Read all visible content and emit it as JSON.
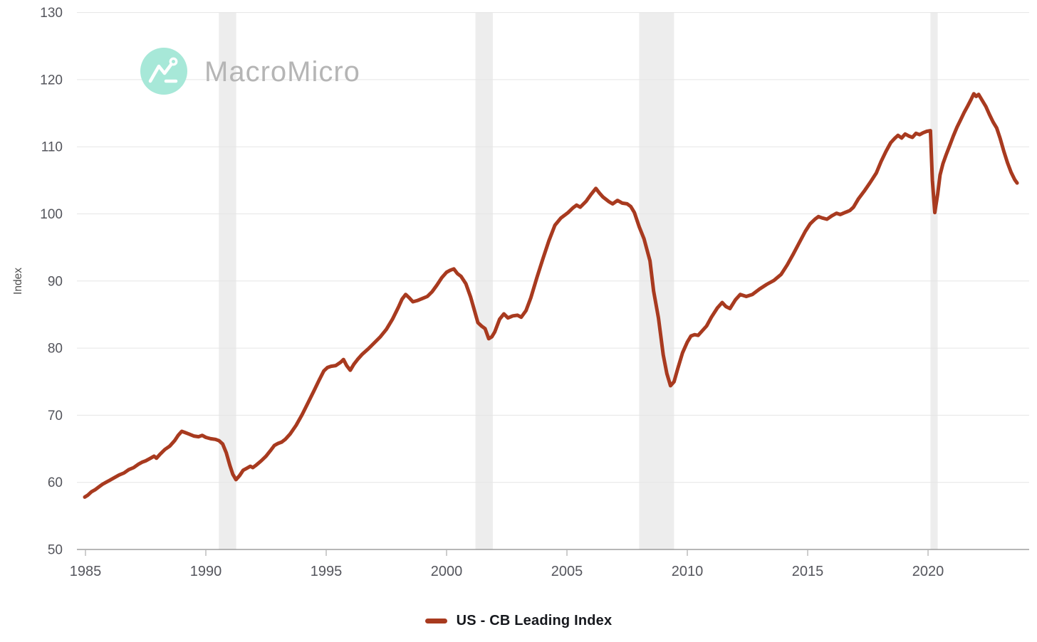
{
  "watermark": {
    "brand": "MacroMicro",
    "logo_icon": "macromicro-zigzag-logo"
  },
  "legend": {
    "label": "US - CB Leading Index",
    "marker_color": "#a83a1f"
  },
  "colors": {
    "line": "#a83a1f",
    "grid": "#e5e5e5",
    "recession_band": "#ededed",
    "axis_line": "#8c8c8c",
    "tick_mark": "#b3b3b3",
    "tick_label": "#54555c",
    "axis_title": "#4f4f4f",
    "watermark_text": "#b5b5b5",
    "logo_circle": "#a7e8d8",
    "logo_glyph": "#ffffff"
  },
  "chart_data": {
    "type": "line",
    "title": "",
    "xlabel": "",
    "ylabel": "Index",
    "x_ticks": [
      1985,
      1990,
      1995,
      2000,
      2005,
      2010,
      2015,
      2020
    ],
    "y_ticks": [
      50,
      60,
      70,
      80,
      90,
      100,
      110,
      120,
      130
    ],
    "xlim": [
      1984.645,
      2024.2
    ],
    "ylim": [
      50,
      130
    ],
    "grid": true,
    "legend_position": "bottom",
    "recession_bands": [
      [
        1990.54,
        1991.26
      ],
      [
        2001.2,
        2001.92
      ],
      [
        2008.0,
        2009.45
      ],
      [
        2020.1,
        2020.4
      ]
    ],
    "series": [
      {
        "name": "US - CB Leading Index",
        "color": "#a83a1f",
        "points": [
          [
            1984.97,
            57.8
          ],
          [
            1985.1,
            58.1
          ],
          [
            1985.25,
            58.6
          ],
          [
            1985.4,
            58.9
          ],
          [
            1985.55,
            59.3
          ],
          [
            1985.7,
            59.7
          ],
          [
            1985.85,
            60.0
          ],
          [
            1986.0,
            60.3
          ],
          [
            1986.2,
            60.7
          ],
          [
            1986.4,
            61.1
          ],
          [
            1986.6,
            61.4
          ],
          [
            1986.8,
            61.9
          ],
          [
            1987.0,
            62.2
          ],
          [
            1987.2,
            62.7
          ],
          [
            1987.35,
            63.0
          ],
          [
            1987.5,
            63.2
          ],
          [
            1987.7,
            63.6
          ],
          [
            1987.85,
            63.9
          ],
          [
            1987.95,
            63.6
          ],
          [
            1988.1,
            64.2
          ],
          [
            1988.3,
            64.9
          ],
          [
            1988.5,
            65.4
          ],
          [
            1988.7,
            66.2
          ],
          [
            1988.85,
            67.0
          ],
          [
            1989.0,
            67.6
          ],
          [
            1989.15,
            67.4
          ],
          [
            1989.3,
            67.2
          ],
          [
            1989.5,
            66.9
          ],
          [
            1989.7,
            66.8
          ],
          [
            1989.85,
            67.0
          ],
          [
            1990.0,
            66.7
          ],
          [
            1990.2,
            66.5
          ],
          [
            1990.4,
            66.4
          ],
          [
            1990.55,
            66.2
          ],
          [
            1990.7,
            65.7
          ],
          [
            1990.85,
            64.4
          ],
          [
            1991.0,
            62.5
          ],
          [
            1991.12,
            61.2
          ],
          [
            1991.25,
            60.4
          ],
          [
            1991.4,
            61.0
          ],
          [
            1991.55,
            61.8
          ],
          [
            1991.7,
            62.1
          ],
          [
            1991.85,
            62.4
          ],
          [
            1991.95,
            62.2
          ],
          [
            1992.1,
            62.6
          ],
          [
            1992.3,
            63.2
          ],
          [
            1992.5,
            63.9
          ],
          [
            1992.7,
            64.8
          ],
          [
            1992.85,
            65.5
          ],
          [
            1993.0,
            65.8
          ],
          [
            1993.15,
            66.0
          ],
          [
            1993.3,
            66.4
          ],
          [
            1993.5,
            67.2
          ],
          [
            1993.75,
            68.5
          ],
          [
            1994.0,
            70.1
          ],
          [
            1994.25,
            71.9
          ],
          [
            1994.5,
            73.7
          ],
          [
            1994.7,
            75.2
          ],
          [
            1994.9,
            76.6
          ],
          [
            1995.05,
            77.1
          ],
          [
            1995.2,
            77.3
          ],
          [
            1995.4,
            77.4
          ],
          [
            1995.6,
            77.9
          ],
          [
            1995.72,
            78.3
          ],
          [
            1995.85,
            77.4
          ],
          [
            1996.0,
            76.7
          ],
          [
            1996.15,
            77.6
          ],
          [
            1996.3,
            78.3
          ],
          [
            1996.5,
            79.1
          ],
          [
            1996.75,
            79.9
          ],
          [
            1997.0,
            80.8
          ],
          [
            1997.25,
            81.7
          ],
          [
            1997.5,
            82.8
          ],
          [
            1997.75,
            84.3
          ],
          [
            1998.0,
            86.1
          ],
          [
            1998.15,
            87.3
          ],
          [
            1998.3,
            88.0
          ],
          [
            1998.45,
            87.5
          ],
          [
            1998.6,
            86.9
          ],
          [
            1998.8,
            87.1
          ],
          [
            1999.0,
            87.4
          ],
          [
            1999.2,
            87.7
          ],
          [
            1999.4,
            88.4
          ],
          [
            1999.6,
            89.4
          ],
          [
            1999.8,
            90.5
          ],
          [
            2000.0,
            91.3
          ],
          [
            2000.15,
            91.6
          ],
          [
            2000.3,
            91.8
          ],
          [
            2000.45,
            91.1
          ],
          [
            2000.6,
            90.7
          ],
          [
            2000.8,
            89.6
          ],
          [
            2001.0,
            87.6
          ],
          [
            2001.15,
            85.7
          ],
          [
            2001.3,
            83.8
          ],
          [
            2001.45,
            83.3
          ],
          [
            2001.6,
            82.9
          ],
          [
            2001.75,
            81.4
          ],
          [
            2001.88,
            81.7
          ],
          [
            2002.0,
            82.4
          ],
          [
            2002.2,
            84.3
          ],
          [
            2002.38,
            85.1
          ],
          [
            2002.55,
            84.5
          ],
          [
            2002.75,
            84.8
          ],
          [
            2002.95,
            84.9
          ],
          [
            2003.1,
            84.6
          ],
          [
            2003.3,
            85.6
          ],
          [
            2003.5,
            87.5
          ],
          [
            2003.75,
            90.5
          ],
          [
            2004.0,
            93.3
          ],
          [
            2004.25,
            96.0
          ],
          [
            2004.5,
            98.3
          ],
          [
            2004.75,
            99.4
          ],
          [
            2005.05,
            100.2
          ],
          [
            2005.25,
            100.9
          ],
          [
            2005.4,
            101.3
          ],
          [
            2005.55,
            101.0
          ],
          [
            2005.8,
            101.9
          ],
          [
            2006.0,
            102.9
          ],
          [
            2006.2,
            103.8
          ],
          [
            2006.35,
            103.1
          ],
          [
            2006.5,
            102.5
          ],
          [
            2006.75,
            101.8
          ],
          [
            2006.9,
            101.5
          ],
          [
            2007.1,
            102.0
          ],
          [
            2007.3,
            101.6
          ],
          [
            2007.5,
            101.5
          ],
          [
            2007.65,
            101.1
          ],
          [
            2007.8,
            100.2
          ],
          [
            2008.0,
            98.1
          ],
          [
            2008.2,
            96.3
          ],
          [
            2008.45,
            93.0
          ],
          [
            2008.6,
            88.5
          ],
          [
            2008.8,
            84.5
          ],
          [
            2009.0,
            79.0
          ],
          [
            2009.15,
            76.2
          ],
          [
            2009.3,
            74.4
          ],
          [
            2009.45,
            75.0
          ],
          [
            2009.6,
            76.9
          ],
          [
            2009.8,
            79.3
          ],
          [
            2010.0,
            80.9
          ],
          [
            2010.15,
            81.8
          ],
          [
            2010.3,
            82.0
          ],
          [
            2010.45,
            81.9
          ],
          [
            2010.6,
            82.5
          ],
          [
            2010.8,
            83.3
          ],
          [
            2011.0,
            84.6
          ],
          [
            2011.25,
            86.0
          ],
          [
            2011.45,
            86.8
          ],
          [
            2011.6,
            86.2
          ],
          [
            2011.77,
            85.9
          ],
          [
            2012.0,
            87.2
          ],
          [
            2012.2,
            88.0
          ],
          [
            2012.45,
            87.7
          ],
          [
            2012.7,
            88.0
          ],
          [
            2013.0,
            88.8
          ],
          [
            2013.3,
            89.5
          ],
          [
            2013.6,
            90.1
          ],
          [
            2013.9,
            91.0
          ],
          [
            2014.15,
            92.4
          ],
          [
            2014.4,
            94.0
          ],
          [
            2014.65,
            95.7
          ],
          [
            2014.9,
            97.4
          ],
          [
            2015.1,
            98.5
          ],
          [
            2015.3,
            99.2
          ],
          [
            2015.45,
            99.6
          ],
          [
            2015.6,
            99.4
          ],
          [
            2015.8,
            99.2
          ],
          [
            2016.0,
            99.7
          ],
          [
            2016.2,
            100.1
          ],
          [
            2016.35,
            99.9
          ],
          [
            2016.55,
            100.2
          ],
          [
            2016.75,
            100.5
          ],
          [
            2016.9,
            101.0
          ],
          [
            2017.1,
            102.2
          ],
          [
            2017.35,
            103.4
          ],
          [
            2017.6,
            104.7
          ],
          [
            2017.85,
            106.1
          ],
          [
            2018.05,
            107.8
          ],
          [
            2018.25,
            109.3
          ],
          [
            2018.45,
            110.6
          ],
          [
            2018.6,
            111.2
          ],
          [
            2018.75,
            111.7
          ],
          [
            2018.9,
            111.3
          ],
          [
            2019.05,
            111.9
          ],
          [
            2019.2,
            111.6
          ],
          [
            2019.35,
            111.4
          ],
          [
            2019.5,
            112.0
          ],
          [
            2019.65,
            111.8
          ],
          [
            2019.8,
            112.1
          ],
          [
            2019.95,
            112.3
          ],
          [
            2020.1,
            112.4
          ],
          [
            2020.18,
            105.0
          ],
          [
            2020.28,
            100.2
          ],
          [
            2020.4,
            103.0
          ],
          [
            2020.5,
            105.8
          ],
          [
            2020.62,
            107.5
          ],
          [
            2020.75,
            108.8
          ],
          [
            2020.9,
            110.2
          ],
          [
            2021.05,
            111.6
          ],
          [
            2021.2,
            112.9
          ],
          [
            2021.35,
            114.0
          ],
          [
            2021.5,
            115.1
          ],
          [
            2021.65,
            116.1
          ],
          [
            2021.78,
            117.0
          ],
          [
            2021.9,
            117.9
          ],
          [
            2022.0,
            117.5
          ],
          [
            2022.1,
            117.8
          ],
          [
            2022.25,
            116.9
          ],
          [
            2022.4,
            116.0
          ],
          [
            2022.55,
            114.8
          ],
          [
            2022.7,
            113.7
          ],
          [
            2022.85,
            112.8
          ],
          [
            2023.0,
            111.2
          ],
          [
            2023.15,
            109.3
          ],
          [
            2023.3,
            107.6
          ],
          [
            2023.45,
            106.2
          ],
          [
            2023.6,
            105.1
          ],
          [
            2023.7,
            104.6
          ]
        ]
      }
    ]
  }
}
